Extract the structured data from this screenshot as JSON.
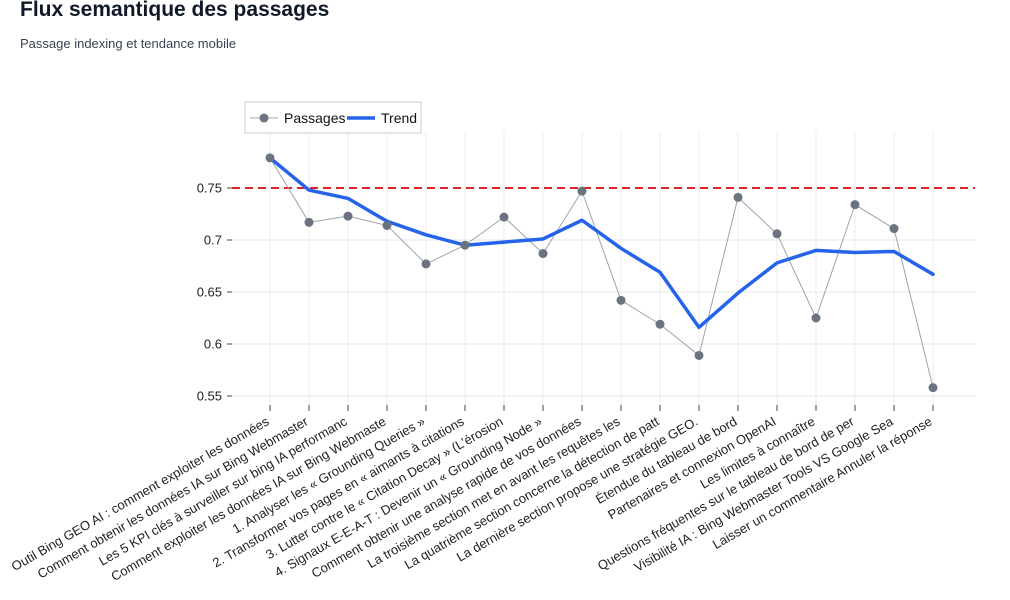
{
  "header": {
    "title": "Flux semantique des passages",
    "subtitle": "Passage indexing et tendance mobile"
  },
  "chart_data": {
    "type": "line",
    "title": "Flux semantique des passages",
    "subtitle": "Passage indexing et tendance mobile",
    "xlabel": "",
    "ylabel": "",
    "ylim": [
      0.54,
      0.8
    ],
    "yticks": [
      0.55,
      0.6,
      0.65,
      0.7,
      0.75
    ],
    "ytick_labels": [
      "0.55",
      "0.6",
      "0.65",
      "0.7",
      "0.75"
    ],
    "grid": true,
    "legend_position": "top-left",
    "categories": [
      "Outil Bing GEO AI : comment exploiter les données",
      "Comment obtenir les données IA sur Bing Webmaster",
      "Les 5 KPI clés à surveiller sur bing IA performanc",
      "Comment exploiter les données IA sur Bing Webmaste",
      "1. Analyser les « Grounding Queries »",
      "2. Transformer vos pages en « aimants à citations",
      "3. Lutter contre le « Citation Decay » (L'érosion",
      "4. Signaux E-E-A-T : Devenir un « Grounding Node »",
      "Comment obtenir une analyse rapide de vos données",
      "La troisième section met en avant les requêtes les",
      "La quatrième section concerne la détection de patt",
      "La dernière section propose une stratégie GEO.",
      "Étendue du tableau de bord",
      "Partenaires et connexion OpenAI",
      "Les limites à connaître",
      "Questions fréquentes sur le tableau de bord de per",
      "Visibilité IA : Bing Webmaster Tools VS Google Sea",
      "Laisser un commentaire Annuler la réponse"
    ],
    "series": [
      {
        "name": "Passages",
        "style": "markers+lines",
        "color": "#6b7280",
        "values": [
          0.779,
          0.717,
          0.723,
          0.714,
          0.677,
          0.695,
          0.722,
          0.687,
          0.747,
          0.642,
          0.619,
          0.589,
          0.741,
          0.706,
          0.625,
          0.734,
          0.711,
          0.558
        ]
      },
      {
        "name": "Trend",
        "style": "line",
        "color": "#2563eb",
        "values": [
          0.779,
          0.748,
          0.74,
          0.718,
          0.705,
          0.695,
          0.698,
          0.701,
          0.719,
          0.692,
          0.669,
          0.616,
          0.649,
          0.678,
          0.69,
          0.688,
          0.689,
          0.667
        ]
      }
    ],
    "reference_line": {
      "y": 0.75,
      "color": "#dc2626",
      "style": "dashed"
    }
  }
}
